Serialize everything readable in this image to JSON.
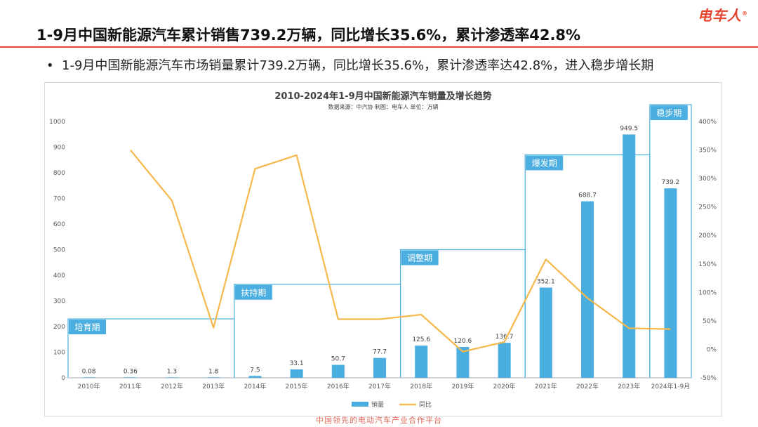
{
  "brand": {
    "logo_text": "电车人",
    "logo_mark": "®"
  },
  "header": {
    "title": "1-9月中国新能源汽车累计销售739.2万辆，同比增长35.6%，累计渗透率42.8%"
  },
  "bullet": {
    "symbol": "•",
    "text": "1-9月中国新能源汽车市场销量累计739.2万辆，同比增长35.6%，累计渗透率达42.8%，进入稳步增长期"
  },
  "footer": {
    "text": "中国领先的电动汽车产业合作平台"
  },
  "colors": {
    "accent": "#e8432f",
    "bar": "#4aaee0",
    "line": "#f7b84b",
    "phase_box": "#4aaee0",
    "phase_label_bg": "#4aaee0"
  },
  "chart_data": {
    "type": "bar",
    "title": "2010-2024年1-9月中国新能源汽车销量及增长趋势",
    "subtitle": "数据来源：中汽协    制图：电车人    单位：万辆",
    "categories": [
      "2010年",
      "2011年",
      "2012年",
      "2013年",
      "2014年",
      "2015年",
      "2016年",
      "2017年",
      "2018年",
      "2019年",
      "2020年",
      "2021年",
      "2022年",
      "2023年",
      "2024年1-9月"
    ],
    "series": [
      {
        "name": "销量",
        "type": "bar",
        "axis": "left",
        "values": [
          0.08,
          0.36,
          1.3,
          1.8,
          7.5,
          33.1,
          50.7,
          77.7,
          125.6,
          120.6,
          136.7,
          352.1,
          688.7,
          949.5,
          739.2
        ],
        "value_labels": [
          "0.08",
          "0.36",
          "1.3",
          "1.8",
          "7.5",
          "33.1",
          "50.7",
          "77.7",
          "125.6",
          "120.6",
          "136.7",
          "352.1",
          "688.7",
          "949.5",
          "739.2"
        ]
      },
      {
        "name": "同比",
        "type": "line",
        "axis": "right",
        "values": [
          null,
          350,
          261,
          38,
          317,
          341,
          53,
          53,
          61,
          -4,
          13,
          158,
          90,
          37,
          35.6
        ]
      }
    ],
    "y_left": {
      "min": 0,
      "max": 1000,
      "ticks": [
        "0",
        "100",
        "200",
        "300",
        "400",
        "500",
        "600",
        "700",
        "800",
        "900",
        "1000"
      ]
    },
    "y_right": {
      "min": -50,
      "max": 400,
      "ticks": [
        "-50%",
        "0%",
        "50%",
        "100%",
        "150%",
        "200%",
        "250%",
        "300%",
        "350%",
        "400%"
      ]
    },
    "phases": [
      {
        "label": "培育期",
        "start_index": 0,
        "end_index": 3,
        "level": 230
      },
      {
        "label": "扶持期",
        "start_index": 4,
        "end_index": 7,
        "level": 365
      },
      {
        "label": "调整期",
        "start_index": 8,
        "end_index": 10,
        "level": 500
      },
      {
        "label": "爆发期",
        "start_index": 11,
        "end_index": 13,
        "level": 870
      },
      {
        "label": "稳步增长期",
        "display_label": "稳步期",
        "start_index": 14,
        "end_index": 14,
        "level": 1060
      }
    ],
    "legend": {
      "position": "bottom-center",
      "items": [
        "销量",
        "同比"
      ]
    },
    "grid": false
  }
}
